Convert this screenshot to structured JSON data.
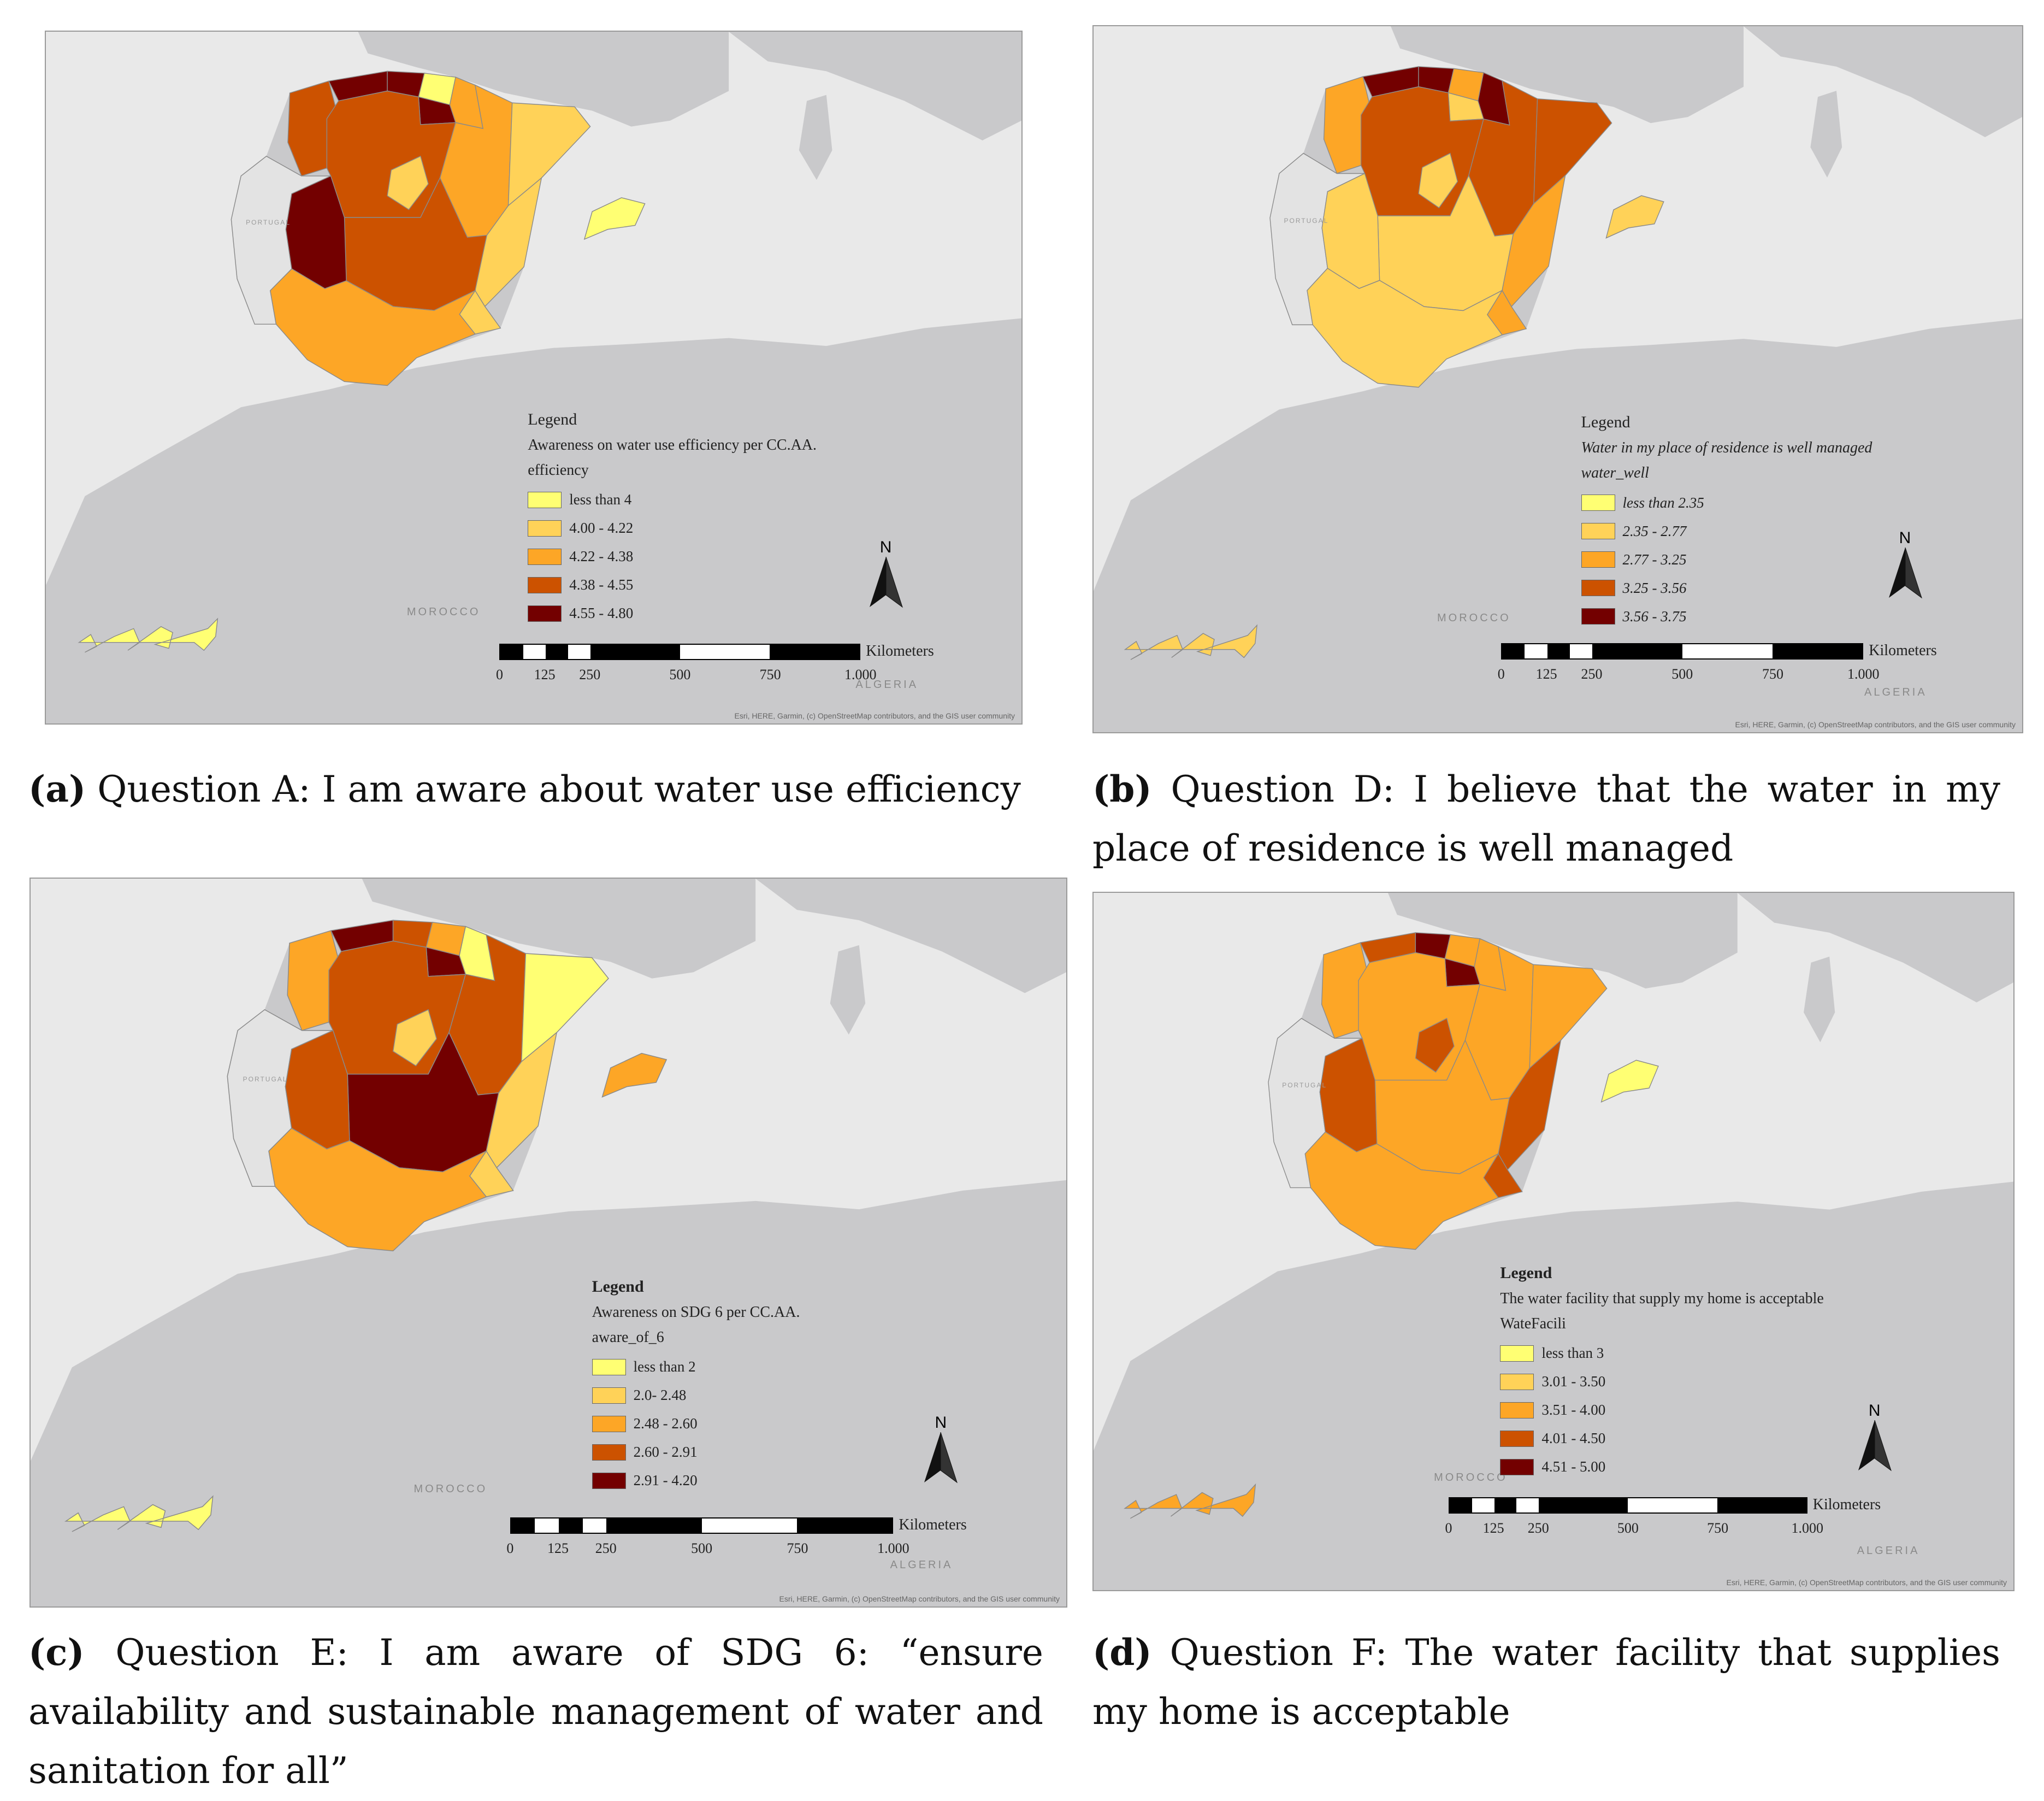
{
  "panels": [
    {
      "id": "a",
      "caption": {
        "letter": "(a)",
        "text": "Question A:   I am aware about water use efficiency"
      },
      "legend": {
        "heading": "Legend",
        "subtitle": "Awareness on water use efficiency per CC.AA.",
        "field": "efficiency",
        "classes": [
          {
            "label": "less than 4",
            "color": "#ffff73"
          },
          {
            "label": "4.00 - 4.22",
            "color": "#ffd258"
          },
          {
            "label": "4.22 - 4.38",
            "color": "#fda626"
          },
          {
            "label": "4.38 - 4.55",
            "color": "#cc5200"
          },
          {
            "label": "4.55 - 4.80",
            "color": "#730000"
          }
        ]
      },
      "regions": {
        "galicia": 3,
        "asturias": 4,
        "cantabria": 4,
        "basque": 0,
        "navarra": 2,
        "larioja": 4,
        "aragon": 2,
        "catalonia": 1,
        "cyl": 3,
        "madrid": 1,
        "clm": 3,
        "extremadura": 4,
        "valencia": 1,
        "murcia": 1,
        "andalusia": 2,
        "baleares": 0,
        "canarias": 0
      }
    },
    {
      "id": "b",
      "caption": {
        "letter": "(b)",
        "text": "Question D:   I believe that the water in my place of residence is well managed"
      },
      "legend": {
        "heading": "Legend",
        "subtitle": "Water in my place of residence is well managed",
        "field": "water_well",
        "classes": [
          {
            "label": "less than 2.35",
            "color": "#ffff73"
          },
          {
            "label": "2.35 - 2.77",
            "color": "#ffd258"
          },
          {
            "label": "2.77 - 3.25",
            "color": "#fda626"
          },
          {
            "label": "3.25 - 3.56",
            "color": "#cc5200"
          },
          {
            "label": "3.56 - 3.75",
            "color": "#730000"
          }
        ]
      },
      "regions": {
        "galicia": 2,
        "asturias": 4,
        "cantabria": 4,
        "basque": 2,
        "navarra": 4,
        "larioja": 1,
        "aragon": 3,
        "catalonia": 3,
        "cyl": 3,
        "madrid": 1,
        "clm": 1,
        "extremadura": 1,
        "valencia": 2,
        "murcia": 2,
        "andalusia": 1,
        "baleares": 1,
        "canarias": 1
      }
    },
    {
      "id": "c",
      "caption": {
        "letter": "(c)",
        "text": "Question E:   I am aware of SDG 6: “ensure availability and sustainable management of water and sanitation for all”"
      },
      "legend": {
        "heading": "Legend",
        "subtitle": "Awareness on SDG 6 per CC.AA.",
        "field": "aware_of_6",
        "classes": [
          {
            "label": "less than 2",
            "color": "#ffff73"
          },
          {
            "label": "2.0- 2.48",
            "color": "#ffd258"
          },
          {
            "label": "2.48 - 2.60",
            "color": "#fda626"
          },
          {
            "label": "2.60 - 2.91",
            "color": "#cc5200"
          },
          {
            "label": "2.91 - 4.20",
            "color": "#730000"
          }
        ]
      },
      "regions": {
        "galicia": 2,
        "asturias": 4,
        "cantabria": 3,
        "basque": 2,
        "navarra": 0,
        "larioja": 4,
        "aragon": 3,
        "catalonia": 0,
        "cyl": 3,
        "madrid": 1,
        "clm": 4,
        "extremadura": 3,
        "valencia": 1,
        "murcia": 1,
        "andalusia": 2,
        "baleares": 2,
        "canarias": 0
      }
    },
    {
      "id": "d",
      "caption": {
        "letter": "(d)",
        "text": "Question F: The water facility that supplies my home is acceptable"
      },
      "legend": {
        "heading": "Legend",
        "subtitle": "The water facility that supply my home is acceptable",
        "field": "WateFacili",
        "classes": [
          {
            "label": "less than 3",
            "color": "#ffff73"
          },
          {
            "label": "3.01 - 3.50",
            "color": "#ffd258"
          },
          {
            "label": "3.51 - 4.00",
            "color": "#fda626"
          },
          {
            "label": "4.01 - 4.50",
            "color": "#cc5200"
          },
          {
            "label": "4.51 - 5.00",
            "color": "#730000"
          }
        ]
      },
      "regions": {
        "galicia": 2,
        "asturias": 3,
        "cantabria": 4,
        "basque": 2,
        "navarra": 2,
        "larioja": 4,
        "aragon": 2,
        "catalonia": 2,
        "cyl": 2,
        "madrid": 3,
        "clm": 2,
        "extremadura": 3,
        "valencia": 3,
        "murcia": 3,
        "andalusia": 2,
        "baleares": 0,
        "canarias": 2
      }
    }
  ],
  "map_labels": {
    "portugal": "PORTUGAL",
    "morocco": "MOROCCO",
    "algeria": "ALGERIA"
  },
  "scale": {
    "ticks": [
      "0",
      "125",
      "250",
      "500",
      "750",
      "1.000"
    ],
    "unit": "Kilometers"
  },
  "north": "N",
  "attribution": "Esri, HERE, Garmin, (c) OpenStreetMap contributors, and the GIS user community",
  "colors": {
    "sea": "#e9e9e9",
    "land": "#c9c9cb",
    "portugal": "#e3e3e3",
    "border": "#8a8a8a"
  }
}
